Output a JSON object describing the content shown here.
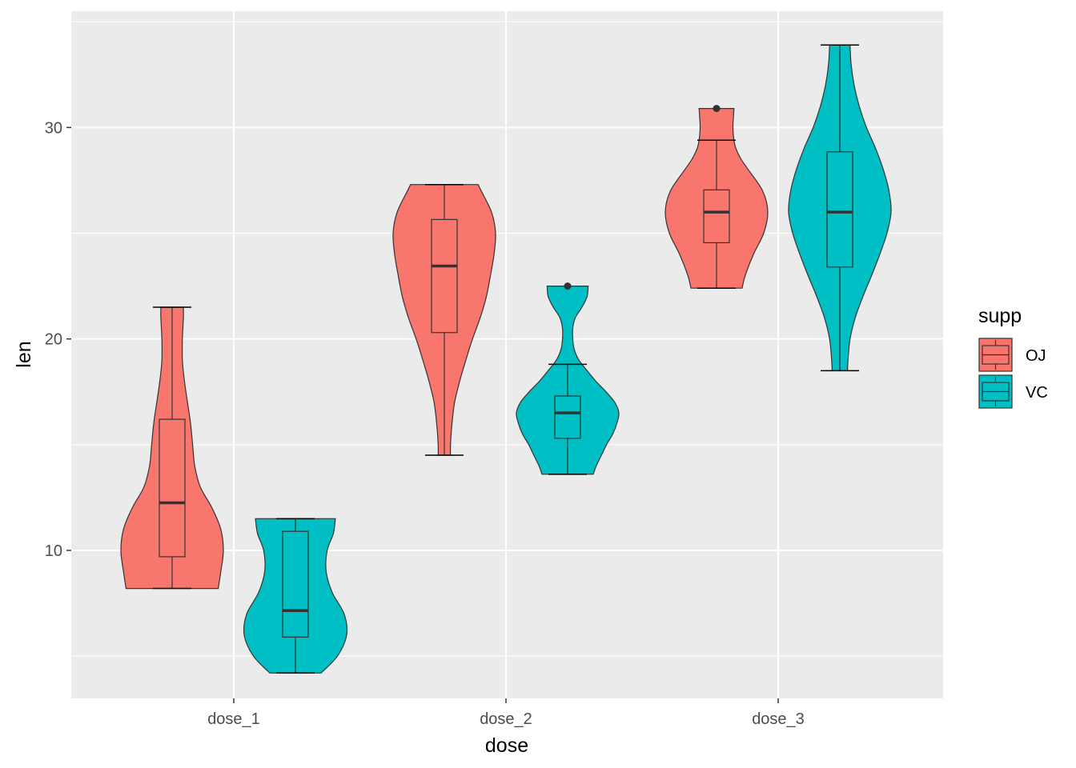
{
  "chart_data": {
    "type": "violin",
    "xlabel": "dose",
    "ylabel": "len",
    "categories": [
      "dose_1",
      "dose_2",
      "dose_3"
    ],
    "ylim": [
      3.0,
      35.5
    ],
    "yticks": [
      10,
      20,
      30
    ],
    "grid": true,
    "legend": {
      "title": "supp",
      "position": "right",
      "entries": [
        "OJ",
        "VC"
      ]
    },
    "colors": {
      "OJ": "#F8766D",
      "VC": "#00BFC4",
      "panel": "#EBEBEB",
      "grid": "#FFFFFF",
      "outline": "#333333"
    },
    "series": [
      {
        "name": "OJ",
        "groups": [
          {
            "category": "dose_1",
            "box": {
              "min": 8.2,
              "q1": 9.7,
              "median": 12.25,
              "q3": 16.2,
              "max": 21.5
            },
            "outliers": [],
            "density": [
              [
                8.2,
                0.9
              ],
              [
                9.0,
                0.95
              ],
              [
                10.0,
                1.0
              ],
              [
                11.0,
                0.95
              ],
              [
                12.0,
                0.78
              ],
              [
                13.0,
                0.55
              ],
              [
                14.0,
                0.44
              ],
              [
                15.0,
                0.4
              ],
              [
                16.0,
                0.36
              ],
              [
                17.0,
                0.3
              ],
              [
                18.0,
                0.24
              ],
              [
                19.0,
                0.2
              ],
              [
                20.0,
                0.2
              ],
              [
                21.0,
                0.22
              ],
              [
                21.5,
                0.22
              ]
            ]
          },
          {
            "category": "dose_2",
            "box": {
              "min": 14.5,
              "q1": 20.3,
              "median": 23.45,
              "q3": 25.65,
              "max": 27.3
            },
            "outliers": [],
            "density": [
              [
                14.5,
                0.12
              ],
              [
                15.0,
                0.12
              ],
              [
                16.0,
                0.15
              ],
              [
                17.0,
                0.2
              ],
              [
                18.0,
                0.3
              ],
              [
                19.0,
                0.42
              ],
              [
                20.0,
                0.55
              ],
              [
                21.0,
                0.7
              ],
              [
                22.0,
                0.82
              ],
              [
                23.0,
                0.9
              ],
              [
                24.0,
                0.97
              ],
              [
                25.0,
                1.0
              ],
              [
                26.0,
                0.92
              ],
              [
                27.0,
                0.72
              ],
              [
                27.3,
                0.66
              ]
            ]
          },
          {
            "category": "dose_3",
            "box": {
              "min": 22.4,
              "q1": 24.55,
              "median": 26.0,
              "q3": 27.05,
              "max": 29.4
            },
            "outliers": [
              30.9
            ],
            "density": [
              [
                22.4,
                0.5
              ],
              [
                23.0,
                0.56
              ],
              [
                24.0,
                0.72
              ],
              [
                25.0,
                0.92
              ],
              [
                26.0,
                1.0
              ],
              [
                27.0,
                0.9
              ],
              [
                28.0,
                0.62
              ],
              [
                28.5,
                0.48
              ],
              [
                29.0,
                0.38
              ],
              [
                29.4,
                0.34
              ],
              [
                30.0,
                0.32
              ],
              [
                30.5,
                0.33
              ],
              [
                30.9,
                0.34
              ]
            ]
          }
        ]
      },
      {
        "name": "VC",
        "groups": [
          {
            "category": "dose_1",
            "box": {
              "min": 4.2,
              "q1": 5.9,
              "median": 7.15,
              "q3": 10.9,
              "max": 11.5
            },
            "outliers": [],
            "density": [
              [
                4.2,
                0.5
              ],
              [
                5.0,
                0.82
              ],
              [
                6.0,
                1.0
              ],
              [
                7.0,
                0.95
              ],
              [
                8.0,
                0.72
              ],
              [
                9.0,
                0.6
              ],
              [
                10.0,
                0.62
              ],
              [
                10.8,
                0.74
              ],
              [
                11.5,
                0.78
              ]
            ]
          },
          {
            "category": "dose_2",
            "box": {
              "min": 13.6,
              "q1": 15.3,
              "median": 16.5,
              "q3": 17.3,
              "max": 18.8
            },
            "outliers": [
              22.5
            ],
            "density": [
              [
                13.6,
                0.5
              ],
              [
                14.0,
                0.56
              ],
              [
                14.5,
                0.66
              ],
              [
                15.0,
                0.76
              ],
              [
                15.5,
                0.88
              ],
              [
                16.0,
                0.96
              ],
              [
                16.5,
                1.0
              ],
              [
                17.0,
                0.92
              ],
              [
                17.5,
                0.75
              ],
              [
                18.0,
                0.55
              ],
              [
                18.5,
                0.38
              ],
              [
                19.0,
                0.22
              ],
              [
                19.5,
                0.13
              ],
              [
                20.0,
                0.1
              ],
              [
                20.5,
                0.1
              ],
              [
                21.0,
                0.15
              ],
              [
                21.5,
                0.28
              ],
              [
                22.0,
                0.38
              ],
              [
                22.5,
                0.4
              ]
            ]
          },
          {
            "category": "dose_3",
            "box": {
              "min": 18.5,
              "q1": 23.4,
              "median": 26.0,
              "q3": 28.85,
              "max": 33.9
            },
            "outliers": [],
            "density": [
              [
                18.5,
                0.15
              ],
              [
                19.0,
                0.16
              ],
              [
                20.0,
                0.2
              ],
              [
                21.0,
                0.3
              ],
              [
                22.0,
                0.45
              ],
              [
                23.0,
                0.62
              ],
              [
                24.0,
                0.78
              ],
              [
                25.0,
                0.92
              ],
              [
                26.0,
                1.0
              ],
              [
                27.0,
                0.96
              ],
              [
                28.0,
                0.85
              ],
              [
                29.0,
                0.7
              ],
              [
                30.0,
                0.52
              ],
              [
                31.0,
                0.38
              ],
              [
                32.0,
                0.28
              ],
              [
                33.0,
                0.22
              ],
              [
                33.9,
                0.2
              ]
            ]
          }
        ]
      }
    ]
  }
}
